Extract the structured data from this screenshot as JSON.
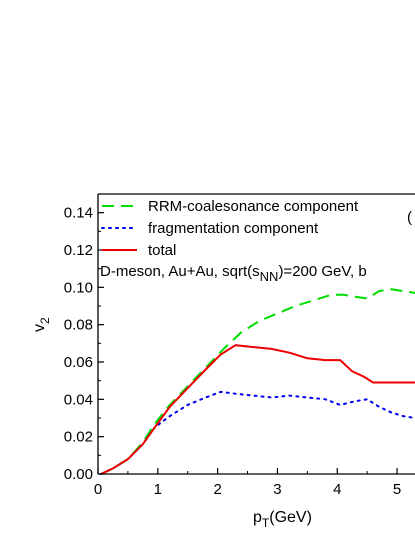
{
  "chart_data": {
    "type": "line",
    "xlim": [
      0,
      5.3
    ],
    "ylim": [
      0,
      0.15
    ],
    "x_ticks": [
      0,
      1,
      2,
      3,
      4,
      5
    ],
    "x_tick_labels": [
      "0",
      "1",
      "2",
      "3",
      "4",
      "5"
    ],
    "y_ticks": [
      0,
      0.02,
      0.04,
      0.06,
      0.08,
      0.1,
      0.12,
      0.14
    ],
    "y_tick_labels": [
      "0.00",
      "0.02",
      "0.04",
      "0.06",
      "0.08",
      "0.10",
      "0.12",
      "0.14"
    ],
    "xlabel": {
      "main": "p",
      "sub": "T",
      "rest": "(GeV)"
    },
    "ylabel": {
      "main": "v",
      "sub": "2"
    },
    "annotation": {
      "pre": "D-meson, Au+Au, sqrt(s",
      "sub": "NN",
      "post": ")=200 GeV, b"
    },
    "panel_label": "(",
    "grid": false,
    "legend_position": "top-left",
    "series": [
      {
        "name": "RRM-coalesonance component",
        "color": "#00dd00",
        "dash": "dashed",
        "x": [
          0.05,
          0.25,
          0.5,
          0.75,
          0.95,
          1.2,
          1.5,
          1.8,
          2.1,
          2.4,
          2.7,
          3.0,
          3.3,
          3.6,
          3.9,
          4.1,
          4.3,
          4.5,
          4.7,
          4.9,
          5.1,
          5.3
        ],
        "y": [
          0.0,
          0.003,
          0.008,
          0.017,
          0.027,
          0.037,
          0.047,
          0.057,
          0.067,
          0.076,
          0.082,
          0.086,
          0.09,
          0.093,
          0.096,
          0.096,
          0.095,
          0.094,
          0.098,
          0.099,
          0.098,
          0.097
        ]
      },
      {
        "name": "fragmentation component",
        "color": "#0000ee",
        "dash": "dotted",
        "x": [
          0.05,
          0.25,
          0.5,
          0.75,
          0.95,
          1.2,
          1.5,
          1.8,
          2.05,
          2.3,
          2.6,
          2.9,
          3.2,
          3.5,
          3.8,
          4.05,
          4.3,
          4.5,
          4.7,
          4.9,
          5.1,
          5.3
        ],
        "y": [
          0.0,
          0.003,
          0.008,
          0.016,
          0.025,
          0.031,
          0.037,
          0.041,
          0.044,
          0.043,
          0.042,
          0.041,
          0.042,
          0.041,
          0.04,
          0.037,
          0.039,
          0.04,
          0.036,
          0.033,
          0.031,
          0.03
        ]
      },
      {
        "name": "total",
        "color": "#ee0000",
        "dash": "solid",
        "x": [
          0.05,
          0.25,
          0.5,
          0.75,
          0.95,
          1.2,
          1.5,
          1.8,
          2.05,
          2.3,
          2.6,
          2.9,
          3.2,
          3.5,
          3.8,
          4.05,
          4.25,
          4.45,
          4.6,
          4.75,
          5.0,
          5.3
        ],
        "y": [
          0.0,
          0.003,
          0.008,
          0.016,
          0.025,
          0.036,
          0.046,
          0.056,
          0.064,
          0.069,
          0.068,
          0.067,
          0.065,
          0.062,
          0.061,
          0.061,
          0.055,
          0.052,
          0.049,
          0.049,
          0.049,
          0.049
        ]
      }
    ]
  }
}
